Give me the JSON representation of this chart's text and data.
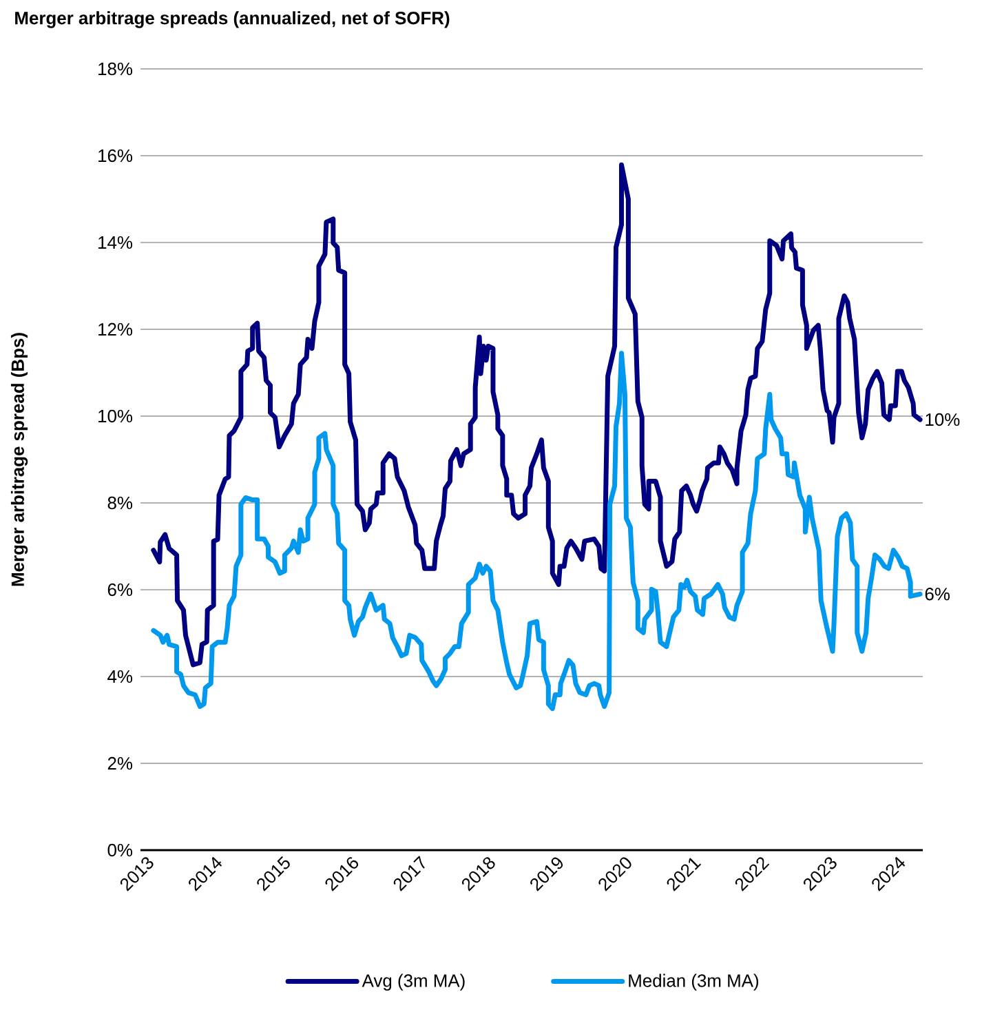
{
  "chart_data": {
    "type": "line",
    "title": "Merger arbitrage spreads (annualized, net of SOFR)",
    "ylabel": "Merger arbitrage spread (Bps)",
    "xlim": [
      2013,
      2024.45
    ],
    "xticks": [
      2013,
      2014,
      2015,
      2016,
      2017,
      2018,
      2019,
      2020,
      2021,
      2022,
      2023,
      2024
    ],
    "ylim": [
      0,
      18
    ],
    "yticks": [
      {
        "value": 0,
        "label": "0%"
      },
      {
        "value": 2,
        "label": "2%"
      },
      {
        "value": 4,
        "label": "4%"
      },
      {
        "value": 6,
        "label": "6%"
      },
      {
        "value": 8,
        "label": "8%"
      },
      {
        "value": 10,
        "label": "10%"
      },
      {
        "value": 12,
        "label": "12%"
      },
      {
        "value": 14,
        "label": "14%"
      },
      {
        "value": 16,
        "label": "16%"
      },
      {
        "value": 18,
        "label": "18%"
      }
    ],
    "grid": "y",
    "legend": "bottom",
    "annotations": [
      {
        "text": "10%",
        "x": 2024.41,
        "y": 9.92
      },
      {
        "text": "6%",
        "x": 2024.41,
        "y": 5.9
      }
    ],
    "series": [
      {
        "name": "Avg (3m MA)",
        "color": "#000080",
        "x": [
          2013.19,
          2013.28,
          2013.29,
          2013.36,
          2013.42,
          2013.53,
          2013.54,
          2013.63,
          2013.66,
          2013.77,
          2013.87,
          2013.9,
          2013.97,
          2013.98,
          2014.07,
          2014.07,
          2014.13,
          2014.15,
          2014.24,
          2014.29,
          2014.3,
          2014.37,
          2014.47,
          2014.47,
          2014.56,
          2014.57,
          2014.64,
          2014.64,
          2014.71,
          2014.73,
          2014.81,
          2014.84,
          2014.9,
          2014.9,
          2014.97,
          2015.03,
          2015.11,
          2015.21,
          2015.24,
          2015.31,
          2015.34,
          2015.43,
          2015.45,
          2015.51,
          2015.55,
          2015.61,
          2015.61,
          2015.7,
          2015.72,
          2015.82,
          2015.82,
          2015.88,
          2015.9,
          2015.99,
          2015.99,
          2016.05,
          2016.07,
          2016.15,
          2016.17,
          2016.25,
          2016.29,
          2016.35,
          2016.37,
          2016.45,
          2016.47,
          2016.55,
          2016.55,
          2016.64,
          2016.72,
          2016.76,
          2016.86,
          2016.92,
          2017.02,
          2017.04,
          2017.12,
          2017.16,
          2017.3,
          2017.33,
          2017.39,
          2017.43,
          2017.46,
          2017.53,
          2017.54,
          2017.63,
          2017.69,
          2017.73,
          2017.83,
          2017.83,
          2017.9,
          2017.9,
          2017.96,
          2017.98,
          2018.02,
          2018.06,
          2018.09,
          2018.16,
          2018.16,
          2018.23,
          2018.23,
          2018.3,
          2018.3,
          2018.36,
          2018.36,
          2018.43,
          2018.46,
          2018.53,
          2018.63,
          2018.63,
          2018.7,
          2018.72,
          2018.8,
          2018.87,
          2018.9,
          2018.97,
          2018.97,
          2019.03,
          2019.03,
          2019.12,
          2019.14,
          2019.2,
          2019.24,
          2019.3,
          2019.37,
          2019.46,
          2019.5,
          2019.64,
          2019.71,
          2019.74,
          2019.79,
          2019.84,
          2019.94,
          2019.96,
          2020.04,
          2020.04,
          2020.14,
          2020.14,
          2020.24,
          2020.28,
          2020.34,
          2020.34,
          2020.38,
          2020.44,
          2020.44,
          2020.54,
          2020.61,
          2020.61,
          2020.7,
          2020.78,
          2020.82,
          2020.89,
          2020.92,
          2020.99,
          2021.05,
          2021.09,
          2021.14,
          2021.19,
          2021.22,
          2021.29,
          2021.3,
          2021.39,
          2021.46,
          2021.48,
          2021.54,
          2021.59,
          2021.66,
          2021.73,
          2021.73,
          2021.79,
          2021.83,
          2021.86,
          2021.89,
          2021.93,
          2022.0,
          2022.03,
          2022.1,
          2022.15,
          2022.21,
          2022.21,
          2022.31,
          2022.39,
          2022.41,
          2022.52,
          2022.53,
          2022.58,
          2022.6,
          2022.69,
          2022.69,
          2022.75,
          2022.75,
          2022.85,
          2022.92,
          2022.95,
          2022.99,
          2023.05,
          2023.08,
          2023.13,
          2023.15,
          2023.22,
          2023.22,
          2023.3,
          2023.35,
          2023.38,
          2023.45,
          2023.51,
          2023.56,
          2023.61,
          2023.65,
          2023.72,
          2023.78,
          2023.85,
          2023.88,
          2023.96,
          2023.98,
          2024.05,
          2024.08,
          2024.14,
          2024.18,
          2024.24,
          2024.31,
          2024.32,
          2024.41
        ],
        "values": [
          6.91,
          6.64,
          7.1,
          7.27,
          6.95,
          6.8,
          5.75,
          5.53,
          4.95,
          4.27,
          4.32,
          4.74,
          4.8,
          5.53,
          5.64,
          7.12,
          7.16,
          8.18,
          8.55,
          8.6,
          9.55,
          9.66,
          9.97,
          11.03,
          11.19,
          11.5,
          11.56,
          12.04,
          12.14,
          11.5,
          11.35,
          10.82,
          10.71,
          10.08,
          9.97,
          9.29,
          9.55,
          9.82,
          10.29,
          10.5,
          11.19,
          11.35,
          11.77,
          11.56,
          12.19,
          12.62,
          13.46,
          13.73,
          14.47,
          14.54,
          13.99,
          13.89,
          13.36,
          13.3,
          11.19,
          10.98,
          9.87,
          9.45,
          7.97,
          7.81,
          7.38,
          7.54,
          7.86,
          7.97,
          8.23,
          8.23,
          8.92,
          9.13,
          9.02,
          8.6,
          8.28,
          7.91,
          7.49,
          7.07,
          6.91,
          6.49,
          6.49,
          7.12,
          7.49,
          7.7,
          8.33,
          8.5,
          8.97,
          9.23,
          8.86,
          9.13,
          9.23,
          9.82,
          9.97,
          10.66,
          11.82,
          10.98,
          11.61,
          11.29,
          11.61,
          11.56,
          10.56,
          10.03,
          9.71,
          9.55,
          8.86,
          8.55,
          8.18,
          8.18,
          7.75,
          7.65,
          7.75,
          8.18,
          8.39,
          8.81,
          9.13,
          9.45,
          8.81,
          8.5,
          7.44,
          7.12,
          6.38,
          6.12,
          6.54,
          6.54,
          6.96,
          7.12,
          6.96,
          6.7,
          7.12,
          7.17,
          7.0,
          6.49,
          6.43,
          10.92,
          11.61,
          13.89,
          14.41,
          15.79,
          15.0,
          12.72,
          12.35,
          10.34,
          9.97,
          8.86,
          7.97,
          7.86,
          8.5,
          8.5,
          8.13,
          7.12,
          6.54,
          6.65,
          7.17,
          7.33,
          8.28,
          8.39,
          8.18,
          7.97,
          7.81,
          8.07,
          8.28,
          8.55,
          8.81,
          8.92,
          8.92,
          9.29,
          9.13,
          8.92,
          8.76,
          8.44,
          8.81,
          9.66,
          9.87,
          10.03,
          10.61,
          10.87,
          10.92,
          11.56,
          11.72,
          12.46,
          12.83,
          14.04,
          13.93,
          13.62,
          14.04,
          14.2,
          13.88,
          13.78,
          13.41,
          13.36,
          12.56,
          12.09,
          11.56,
          11.98,
          12.09,
          11.56,
          10.61,
          10.13,
          10.08,
          9.4,
          9.97,
          10.29,
          12.25,
          12.77,
          12.62,
          12.25,
          11.77,
          10.08,
          9.5,
          9.82,
          10.61,
          10.87,
          11.03,
          10.76,
          10.03,
          9.92,
          10.24,
          10.24,
          11.03,
          11.03,
          10.82,
          10.66,
          10.29,
          10.03,
          9.92
        ]
      },
      {
        "name": "Median (3m MA)",
        "color": "#0099ee",
        "x": [
          2013.19,
          2013.29,
          2013.33,
          2013.39,
          2013.42,
          2013.53,
          2013.53,
          2013.59,
          2013.63,
          2013.7,
          2013.8,
          2013.87,
          2013.93,
          2013.95,
          2014.03,
          2014.05,
          2014.13,
          2014.24,
          2014.27,
          2014.3,
          2014.37,
          2014.4,
          2014.47,
          2014.47,
          2014.54,
          2014.64,
          2014.71,
          2014.71,
          2014.81,
          2014.87,
          2014.87,
          2014.97,
          2015.04,
          2015.11,
          2015.11,
          2015.21,
          2015.24,
          2015.31,
          2015.34,
          2015.38,
          2015.45,
          2015.45,
          2015.55,
          2015.55,
          2015.61,
          2015.61,
          2015.7,
          2015.72,
          2015.82,
          2015.82,
          2015.88,
          2015.9,
          2015.99,
          2015.99,
          2016.05,
          2016.07,
          2016.13,
          2016.19,
          2016.25,
          2016.29,
          2016.37,
          2016.45,
          2016.55,
          2016.57,
          2016.65,
          2016.69,
          2016.76,
          2016.82,
          2016.89,
          2016.94,
          2017.02,
          2017.11,
          2017.12,
          2017.22,
          2017.28,
          2017.33,
          2017.4,
          2017.46,
          2017.46,
          2017.53,
          2017.6,
          2017.66,
          2017.7,
          2017.8,
          2017.8,
          2017.9,
          2017.96,
          2018.01,
          2018.06,
          2018.12,
          2018.16,
          2018.23,
          2018.26,
          2018.3,
          2018.36,
          2018.4,
          2018.5,
          2018.56,
          2018.6,
          2018.66,
          2018.7,
          2018.8,
          2018.83,
          2018.9,
          2018.9,
          2018.97,
          2018.97,
          2019.03,
          2019.07,
          2019.14,
          2019.15,
          2019.2,
          2019.27,
          2019.33,
          2019.37,
          2019.43,
          2019.52,
          2019.57,
          2019.64,
          2019.71,
          2019.73,
          2019.79,
          2019.86,
          2019.87,
          2019.94,
          2019.96,
          2020.01,
          2020.04,
          2020.09,
          2020.11,
          2020.17,
          2020.21,
          2020.28,
          2020.28,
          2020.36,
          2020.38,
          2020.48,
          2020.48,
          2020.54,
          2020.57,
          2020.61,
          2020.7,
          2020.73,
          2020.8,
          2020.88,
          2020.91,
          2020.96,
          2021.0,
          2021.05,
          2021.12,
          2021.15,
          2021.23,
          2021.25,
          2021.35,
          2021.45,
          2021.52,
          2021.55,
          2021.62,
          2021.69,
          2021.73,
          2021.81,
          2021.81,
          2021.89,
          2021.93,
          2022.0,
          2022.03,
          2022.13,
          2022.15,
          2022.21,
          2022.23,
          2022.29,
          2022.37,
          2022.39,
          2022.46,
          2022.48,
          2022.56,
          2022.57,
          2022.65,
          2022.73,
          2022.73,
          2022.79,
          2022.83,
          2022.93,
          2022.96,
          2023.04,
          2023.13,
          2023.15,
          2023.2,
          2023.26,
          2023.33,
          2023.39,
          2023.42,
          2023.49,
          2023.49,
          2023.56,
          2023.62,
          2023.65,
          2023.7,
          2023.75,
          2023.82,
          2023.89,
          2023.95,
          2024.02,
          2024.09,
          2024.15,
          2024.22,
          2024.27,
          2024.27,
          2024.41
        ],
        "values": [
          5.06,
          4.95,
          4.79,
          4.95,
          4.74,
          4.69,
          4.11,
          4.05,
          3.79,
          3.63,
          3.58,
          3.31,
          3.37,
          3.74,
          3.84,
          4.69,
          4.79,
          4.79,
          5.11,
          5.64,
          5.85,
          6.54,
          6.8,
          7.97,
          8.12,
          8.07,
          8.07,
          7.17,
          7.17,
          7.0,
          6.75,
          6.64,
          6.38,
          6.43,
          6.8,
          6.96,
          7.12,
          6.86,
          7.38,
          7.12,
          7.17,
          7.65,
          7.97,
          8.71,
          9.02,
          9.5,
          9.6,
          9.23,
          8.86,
          7.97,
          7.75,
          7.07,
          6.91,
          5.75,
          5.64,
          5.32,
          4.95,
          5.27,
          5.37,
          5.59,
          5.9,
          5.53,
          5.64,
          5.32,
          5.22,
          4.9,
          4.69,
          4.48,
          4.53,
          4.95,
          4.9,
          4.74,
          4.37,
          4.11,
          3.9,
          3.79,
          3.95,
          4.16,
          4.42,
          4.53,
          4.69,
          4.69,
          5.22,
          5.48,
          6.12,
          6.27,
          6.59,
          6.38,
          6.54,
          6.43,
          5.75,
          5.53,
          5.22,
          4.79,
          4.32,
          4.05,
          3.74,
          3.79,
          4.05,
          4.48,
          5.22,
          5.27,
          4.85,
          4.79,
          4.16,
          3.79,
          3.37,
          3.26,
          3.58,
          3.58,
          3.84,
          4.05,
          4.37,
          4.26,
          3.84,
          3.63,
          3.58,
          3.79,
          3.84,
          3.79,
          3.58,
          3.31,
          3.63,
          7.97,
          8.39,
          9.76,
          10.29,
          11.45,
          10.5,
          7.65,
          7.44,
          6.17,
          5.75,
          5.11,
          5.01,
          5.32,
          5.53,
          6.01,
          5.96,
          5.53,
          4.79,
          4.69,
          4.9,
          5.37,
          5.53,
          6.12,
          6.06,
          6.22,
          5.96,
          5.85,
          5.53,
          5.43,
          5.8,
          5.9,
          6.12,
          5.9,
          5.59,
          5.37,
          5.32,
          5.64,
          5.96,
          6.86,
          7.07,
          7.75,
          8.28,
          9.02,
          9.13,
          9.71,
          10.5,
          9.92,
          9.71,
          9.5,
          9.13,
          9.13,
          8.65,
          8.6,
          8.92,
          8.18,
          7.86,
          7.33,
          8.13,
          7.65,
          6.91,
          5.75,
          5.17,
          4.58,
          5.22,
          7.23,
          7.65,
          7.75,
          7.54,
          6.7,
          6.54,
          5.01,
          4.58,
          5.01,
          5.8,
          6.27,
          6.8,
          6.7,
          6.54,
          6.49,
          6.91,
          6.75,
          6.54,
          6.49,
          6.17,
          5.85,
          5.9
        ]
      }
    ]
  }
}
